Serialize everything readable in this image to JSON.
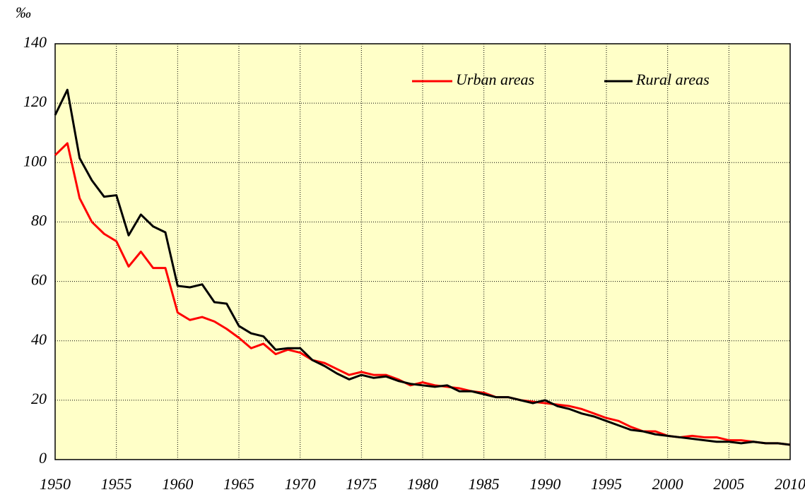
{
  "chart_data": {
    "type": "line",
    "y_label": "‰",
    "x": [
      1950,
      1951,
      1952,
      1953,
      1954,
      1955,
      1956,
      1957,
      1958,
      1959,
      1960,
      1961,
      1962,
      1963,
      1964,
      1965,
      1966,
      1967,
      1968,
      1969,
      1970,
      1971,
      1972,
      1973,
      1974,
      1975,
      1976,
      1977,
      1978,
      1979,
      1980,
      1981,
      1982,
      1983,
      1984,
      1985,
      1986,
      1987,
      1988,
      1989,
      1990,
      1991,
      1992,
      1993,
      1994,
      1995,
      1996,
      1997,
      1998,
      1999,
      2000,
      2001,
      2002,
      2003,
      2004,
      2005,
      2006,
      2007,
      2008,
      2009,
      2010
    ],
    "series": [
      {
        "name": "Urban areas",
        "color": "#ff0000",
        "values": [
          102.5,
          106.5,
          88,
          80,
          76,
          73.5,
          65,
          70,
          64.5,
          64.5,
          49.5,
          47,
          48,
          46.5,
          44,
          41,
          37.5,
          39,
          35.5,
          37,
          36,
          33.5,
          32.5,
          30.5,
          28.5,
          29.5,
          28.5,
          28.5,
          27,
          25,
          26,
          25,
          24.5,
          24,
          23,
          22.5,
          21,
          21,
          20,
          19.5,
          19,
          18.5,
          18,
          17,
          15.5,
          14,
          13,
          11,
          9.5,
          9.5,
          8,
          7.5,
          8,
          7.5,
          7.5,
          6.5,
          6.5,
          6,
          5.5,
          5.5,
          5
        ]
      },
      {
        "name": "Rural areas",
        "color": "#000000",
        "values": [
          116,
          124.5,
          101.5,
          94,
          88.5,
          89,
          75.5,
          82.5,
          78.5,
          76.5,
          58.5,
          58,
          59,
          53,
          52.5,
          45,
          42.5,
          41.5,
          37,
          37.5,
          37.5,
          33.5,
          31.5,
          29,
          27,
          28.5,
          27.5,
          28,
          26.5,
          25.5,
          25,
          24.5,
          25,
          23,
          23,
          22,
          21,
          21,
          20,
          19,
          20,
          18,
          17,
          15.5,
          14.5,
          13,
          11.5,
          10,
          9.5,
          8.5,
          8,
          7.5,
          7,
          6.5,
          6,
          6,
          5.5,
          6,
          5.5,
          5.5,
          5
        ]
      }
    ],
    "xlim": [
      1950,
      2010
    ],
    "xticks": [
      1950,
      1955,
      1960,
      1965,
      1970,
      1975,
      1980,
      1985,
      1990,
      1995,
      2000,
      2005,
      2010
    ],
    "ylim": [
      0,
      140
    ],
    "yticks": [
      0,
      20,
      40,
      60,
      80,
      100,
      120,
      140
    ],
    "grid": true,
    "legend": "upper right",
    "background": "#ffffc8"
  }
}
